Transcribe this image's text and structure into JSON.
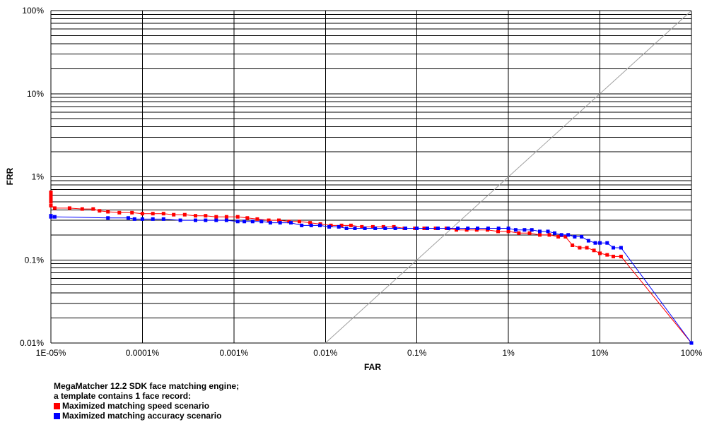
{
  "chart_data": {
    "type": "line",
    "xlabel": "FAR",
    "ylabel": "FRR",
    "x_scale": "log",
    "y_scale": "log",
    "x_range": [
      1e-05,
      100
    ],
    "y_range": [
      0.01,
      100
    ],
    "x_ticks": [
      {
        "value": 1e-05,
        "label": "1E-05%"
      },
      {
        "value": 0.0001,
        "label": "0.0001%"
      },
      {
        "value": 0.001,
        "label": "0.001%"
      },
      {
        "value": 0.01,
        "label": "0.01%"
      },
      {
        "value": 0.1,
        "label": "0.1%"
      },
      {
        "value": 1,
        "label": "1%"
      },
      {
        "value": 10,
        "label": "10%"
      },
      {
        "value": 100,
        "label": "100%"
      }
    ],
    "y_ticks": [
      {
        "value": 0.01,
        "label": "0.01%"
      },
      {
        "value": 0.1,
        "label": "0.1%"
      },
      {
        "value": 1,
        "label": "1%"
      },
      {
        "value": 10,
        "label": "10%"
      },
      {
        "value": 100,
        "label": "100%"
      }
    ],
    "grid": true,
    "reference_line": {
      "x": [
        0.01,
        100
      ],
      "y": [
        0.01,
        100
      ],
      "color": "#a0a0a0"
    },
    "legend": {
      "placement": "bottom-left",
      "heading": [
        "MegaMatcher 12.2 SDK face matching engine;",
        "a template contains 1 face record:"
      ]
    },
    "series": [
      {
        "name": "Maximized matching speed scenario",
        "color": "#ff0000",
        "x": [
          1e-05,
          1e-05,
          1e-05,
          1e-05,
          1e-05,
          1.1e-05,
          1.6e-05,
          2.2e-05,
          2.9e-05,
          3.4e-05,
          4.2e-05,
          5.6e-05,
          7.7e-05,
          0.0001,
          0.00013,
          0.00017,
          0.00022,
          0.00029,
          0.00038,
          0.00049,
          0.00064,
          0.00083,
          0.0011,
          0.0014,
          0.0018,
          0.0024,
          0.0031,
          0.004,
          0.0052,
          0.0068,
          0.0088,
          0.0115,
          0.015,
          0.019,
          0.025,
          0.033,
          0.043,
          0.056,
          0.073,
          0.095,
          0.12,
          0.16,
          0.21,
          0.27,
          0.35,
          0.45,
          0.59,
          0.77,
          1.0,
          1.3,
          1.7,
          2.2,
          2.8,
          3.5,
          4.2,
          5.0,
          6.0,
          7.2,
          8.6,
          10.0,
          12.0,
          14.0,
          17.0,
          100.0
        ],
        "y": [
          0.65,
          0.6,
          0.55,
          0.5,
          0.45,
          0.42,
          0.42,
          0.41,
          0.41,
          0.39,
          0.38,
          0.37,
          0.37,
          0.36,
          0.36,
          0.36,
          0.35,
          0.35,
          0.34,
          0.34,
          0.33,
          0.33,
          0.33,
          0.32,
          0.31,
          0.3,
          0.3,
          0.29,
          0.29,
          0.28,
          0.27,
          0.26,
          0.26,
          0.26,
          0.25,
          0.25,
          0.25,
          0.25,
          0.24,
          0.24,
          0.24,
          0.24,
          0.24,
          0.23,
          0.23,
          0.23,
          0.23,
          0.22,
          0.22,
          0.21,
          0.21,
          0.2,
          0.2,
          0.19,
          0.19,
          0.15,
          0.14,
          0.14,
          0.13,
          0.12,
          0.115,
          0.11,
          0.11,
          0.01
        ]
      },
      {
        "name": "Maximized matching accuracy scenario",
        "color": "#0000ff",
        "x": [
          1e-05,
          1e-05,
          1.1e-05,
          4.2e-05,
          7e-05,
          8.2e-05,
          0.0001,
          0.00013,
          0.00017,
          0.00026,
          0.00038,
          0.00049,
          0.00064,
          0.00083,
          0.0011,
          0.0013,
          0.0016,
          0.002,
          0.0025,
          0.0032,
          0.0042,
          0.0055,
          0.007,
          0.0087,
          0.011,
          0.014,
          0.017,
          0.021,
          0.027,
          0.035,
          0.045,
          0.058,
          0.075,
          0.1,
          0.13,
          0.17,
          0.22,
          0.28,
          0.36,
          0.46,
          0.6,
          0.78,
          1.0,
          1.2,
          1.5,
          1.8,
          2.2,
          2.7,
          3.2,
          3.8,
          4.5,
          5.3,
          6.3,
          7.5,
          8.9,
          10.0,
          12.0,
          14.0,
          17.0,
          100.0
        ],
        "y": [
          0.34,
          0.33,
          0.33,
          0.32,
          0.32,
          0.31,
          0.31,
          0.31,
          0.31,
          0.3,
          0.3,
          0.3,
          0.3,
          0.3,
          0.29,
          0.29,
          0.29,
          0.29,
          0.28,
          0.28,
          0.28,
          0.26,
          0.26,
          0.26,
          0.25,
          0.25,
          0.24,
          0.24,
          0.24,
          0.24,
          0.24,
          0.24,
          0.24,
          0.24,
          0.24,
          0.24,
          0.24,
          0.24,
          0.24,
          0.24,
          0.24,
          0.24,
          0.24,
          0.23,
          0.23,
          0.23,
          0.22,
          0.22,
          0.21,
          0.2,
          0.2,
          0.19,
          0.19,
          0.17,
          0.16,
          0.16,
          0.16,
          0.14,
          0.14,
          0.01
        ]
      }
    ]
  }
}
